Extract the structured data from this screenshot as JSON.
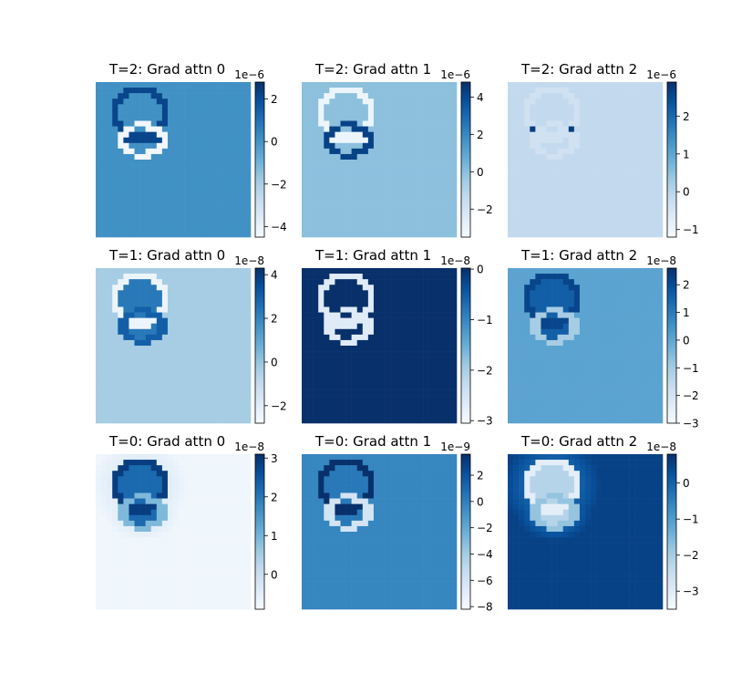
{
  "chart_data": [
    {
      "type": "heatmap",
      "title": "T=2: Grad attn 0",
      "colormap": "Blues",
      "background_level": 0.63,
      "outer_ring_level": 0.92,
      "inner_ring_level": 0.03,
      "bar_level": 0.92,
      "colorbar": {
        "offset_text": "1e−6",
        "ticks": [
          "2",
          "0",
          "−2",
          "−4"
        ],
        "tick_values": [
          2,
          0,
          -2,
          -4
        ],
        "vmin": -4.5,
        "vmax": 2.8
      }
    },
    {
      "type": "heatmap",
      "title": "T=2: Grad attn 1",
      "colormap": "Blues",
      "background_level": 0.42,
      "outer_ring_level": 0.05,
      "inner_ring_level": 0.93,
      "bar_level": 0.05,
      "colorbar": {
        "offset_text": "1e−6",
        "ticks": [
          "4",
          "2",
          "0",
          "−2"
        ],
        "tick_values": [
          4,
          2,
          0,
          -2
        ],
        "vmin": -3.5,
        "vmax": 4.8
      }
    },
    {
      "type": "heatmap",
      "title": "T=2: Grad attn 2",
      "colormap": "Blues",
      "background_level": 0.26,
      "outer_ring_level": 0.2,
      "inner_ring_level": 0.2,
      "spot_level": 0.95,
      "colorbar": {
        "offset_text": "1e−6",
        "ticks": [
          "2",
          "1",
          "0",
          "−1"
        ],
        "tick_values": [
          2,
          1,
          0,
          -1
        ],
        "vmin": -1.2,
        "vmax": 2.9
      }
    },
    {
      "type": "heatmap",
      "title": "T=1: Grad attn 0",
      "colormap": "Blues",
      "background_level": 0.35,
      "outer_ring_level": 0.05,
      "inner_ring_level": 0.82,
      "body_level": 0.72,
      "colorbar": {
        "offset_text": "1e−8",
        "ticks": [
          "4",
          "2",
          "0",
          "−2"
        ],
        "tick_values": [
          4,
          2,
          0,
          -2
        ],
        "vmin": -2.8,
        "vmax": 4.3
      }
    },
    {
      "type": "heatmap",
      "title": "T=1: Grad attn 1",
      "colormap": "Blues",
      "background_level": 1.0,
      "outer_ring_level": 0.12,
      "inner_ring_level": 0.12,
      "colorbar": {
        "offset_text": "1e−8",
        "ticks": [
          "0",
          "−1",
          "−2",
          "−3"
        ],
        "tick_values": [
          0,
          -1,
          -2,
          -3
        ],
        "vmin": -3.05,
        "vmax": 0.02
      }
    },
    {
      "type": "heatmap",
      "title": "T=1: Grad attn 2",
      "colormap": "Blues",
      "background_level": 0.55,
      "outer_ring_level": 0.92,
      "inner_ring_level": 0.35,
      "body_level": 0.82,
      "colorbar": {
        "offset_text": "1e−8",
        "ticks": [
          "2",
          "1",
          "0",
          "−1",
          "−2",
          "−3"
        ],
        "tick_values": [
          2,
          1,
          0,
          -1,
          -2,
          -3
        ],
        "vmin": -3.0,
        "vmax": 2.6
      }
    },
    {
      "type": "heatmap",
      "title": "T=0: Grad attn 0",
      "colormap": "Blues",
      "background_level": 0.04,
      "outer_ring_level": 0.95,
      "inner_ring_level": 0.45,
      "body_level": 0.78,
      "glow_level": 0.12,
      "colorbar": {
        "offset_text": "1e−8",
        "ticks": [
          "3",
          "2",
          "1",
          "0"
        ],
        "tick_values": [
          3,
          2,
          1,
          0
        ],
        "vmin": -0.9,
        "vmax": 3.1
      }
    },
    {
      "type": "heatmap",
      "title": "T=0: Grad attn 1",
      "colormap": "Blues",
      "background_level": 0.67,
      "outer_ring_level": 1.0,
      "inner_ring_level": 0.18,
      "body_level": 0.72,
      "colorbar": {
        "offset_text": "1e−9",
        "ticks": [
          "2",
          "0",
          "−2",
          "−4",
          "−6",
          "−8"
        ],
        "tick_values": [
          2,
          0,
          -2,
          -4,
          -6,
          -8
        ],
        "vmin": -8.2,
        "vmax": 3.6
      }
    },
    {
      "type": "heatmap",
      "title": "T=0: Grad attn 2",
      "colormap": "Blues",
      "background_level": 0.93,
      "outer_ring_level": 0.1,
      "inner_ring_level": 0.4,
      "body_level": 0.3,
      "glow_level": 0.8,
      "colorbar": {
        "offset_text": "1e−8",
        "ticks": [
          "0",
          "−1",
          "−2",
          "−3"
        ],
        "tick_values": [
          0,
          -1,
          -2,
          -3
        ],
        "vmin": -3.5,
        "vmax": 0.8
      }
    }
  ]
}
